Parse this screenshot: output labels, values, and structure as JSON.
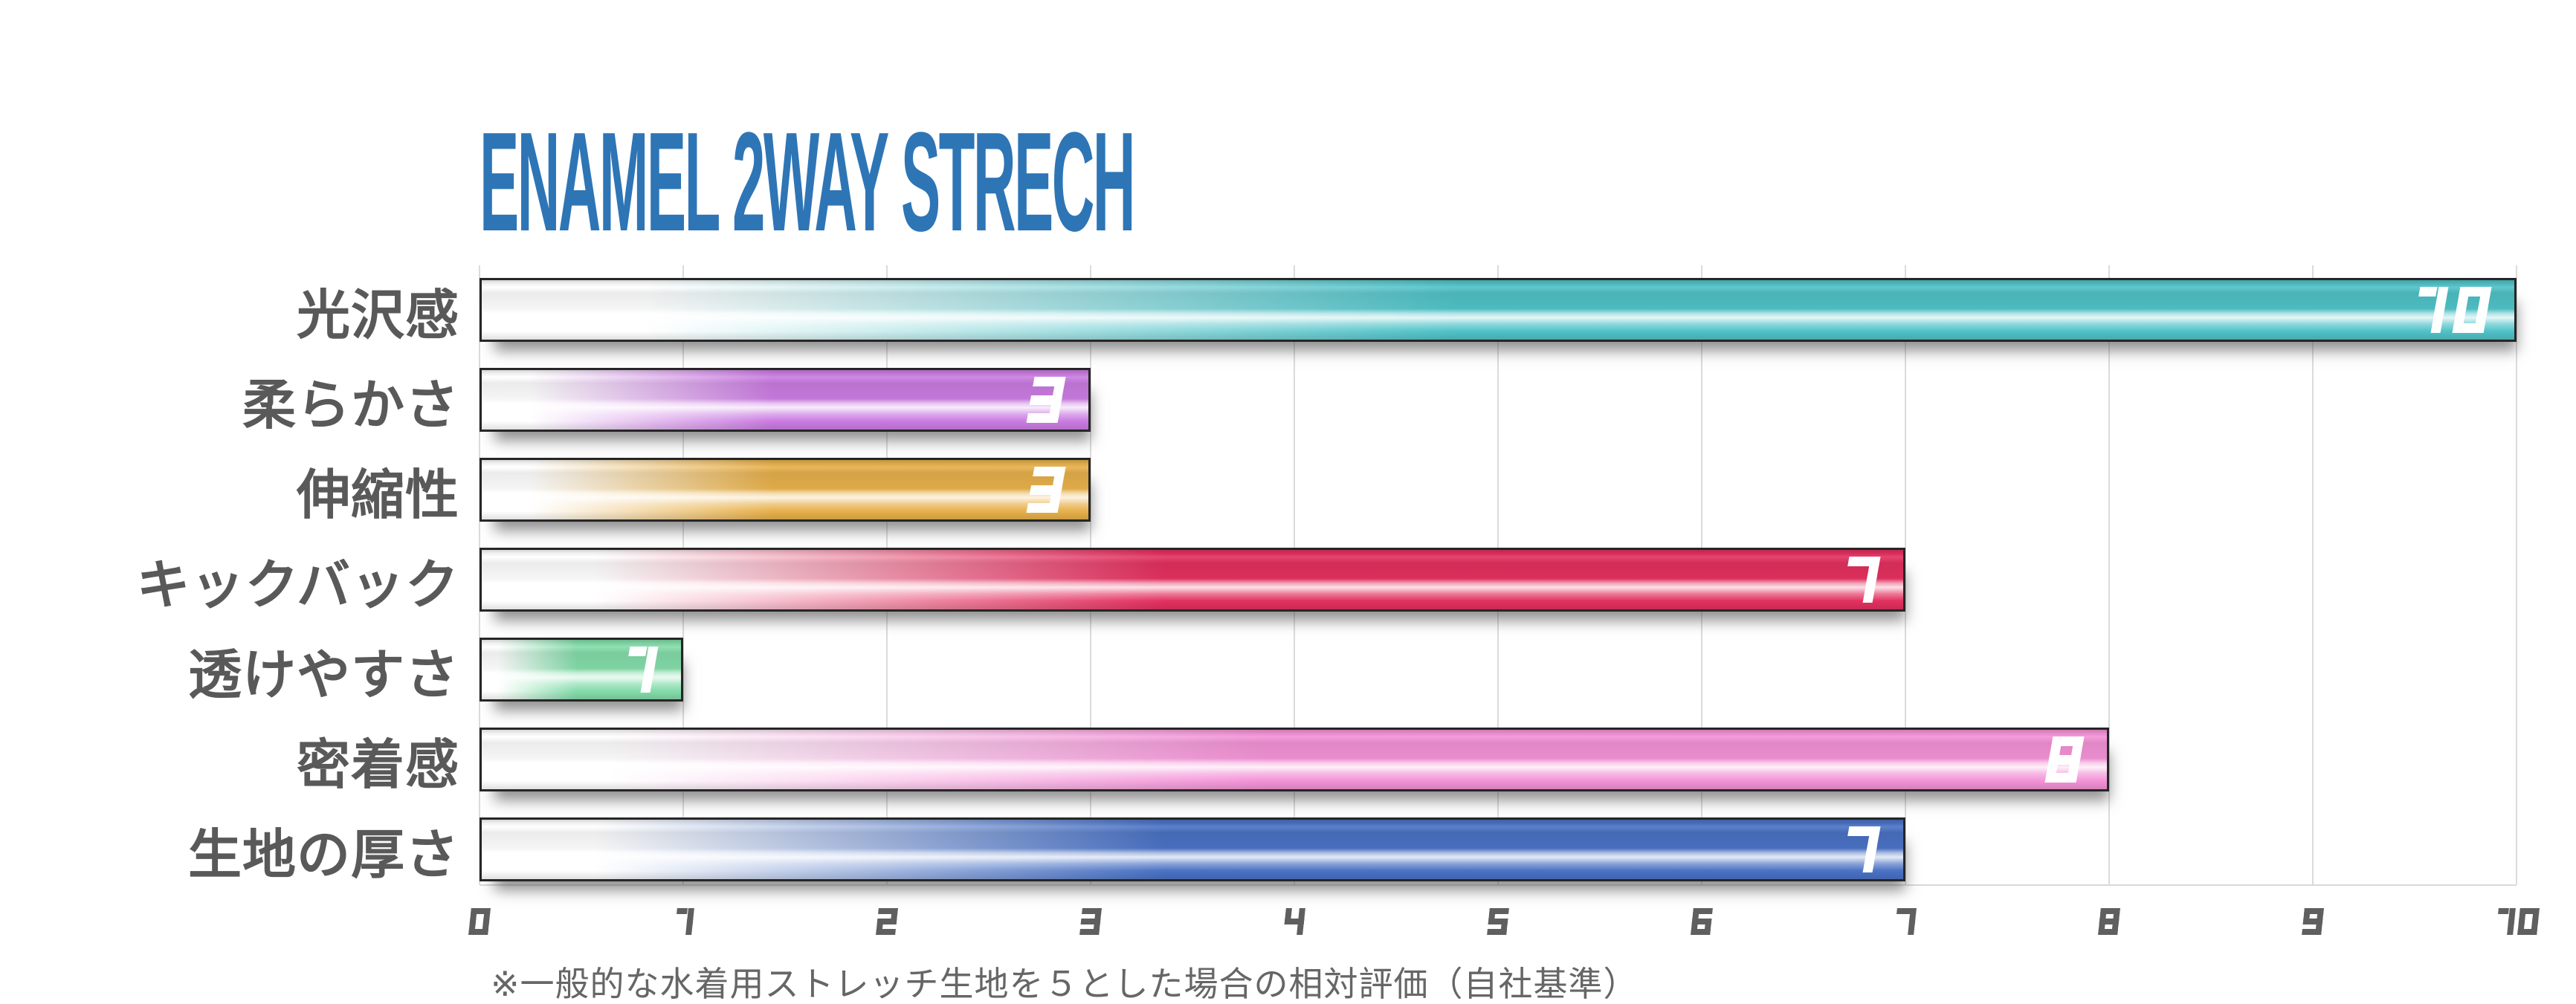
{
  "page": {
    "background": "#ffffff"
  },
  "colors": {
    "title": "#2e75b6",
    "category_label": "#595959",
    "tick_label": "#5f5f5f",
    "gridline": "#dbdbdb",
    "baseline": "#d9d9d9",
    "footnote": "#666666",
    "value_label": "#ffffff",
    "bar_border": "#262626"
  },
  "chart_data": {
    "type": "bar",
    "orientation": "horizontal",
    "title": "ENAMEL 2WAY STRECH",
    "categories": [
      "光沢感",
      "柔らかさ",
      "伸縮性",
      "キックバック",
      "透けやすさ",
      "密着感",
      "生地の厚さ"
    ],
    "values": [
      10,
      3,
      3,
      7,
      1,
      8,
      7
    ],
    "bar_colors": [
      "#4fc2c7",
      "#ca7ce1",
      "#e7b04b",
      "#e3305f",
      "#84dcaa",
      "#f392d6",
      "#4a72c4"
    ],
    "xlim": [
      0,
      10
    ],
    "x_ticks": [
      0,
      1,
      2,
      3,
      4,
      5,
      6,
      7,
      8,
      9,
      10
    ],
    "grid": true,
    "legend": "none",
    "xlabel": "",
    "ylabel": "",
    "value_labels_shown_on_bars": true,
    "note": "※一般的な水着用ストレッチ生地を５とした場合の相対評価（自社基準）"
  }
}
